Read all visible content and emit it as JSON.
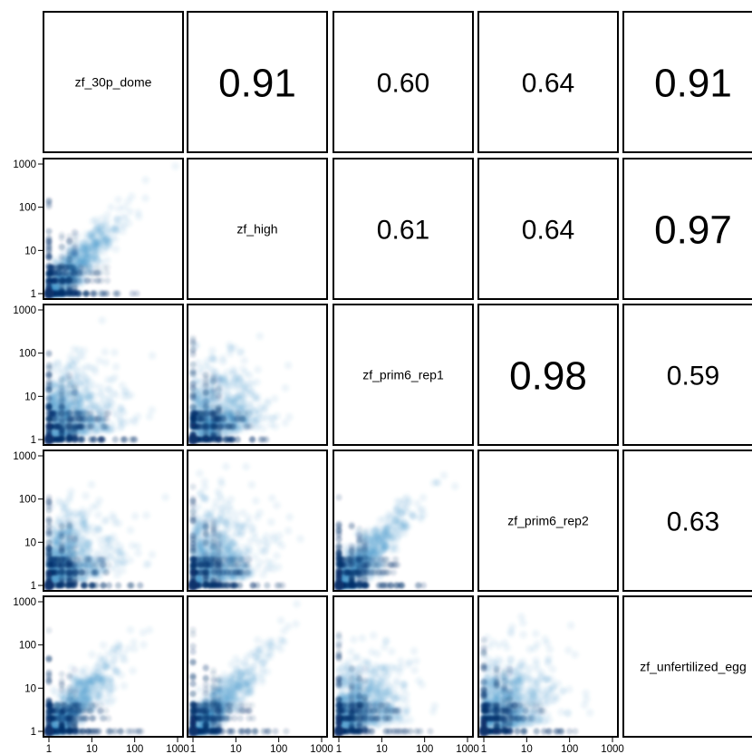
{
  "chart_data": {
    "type": "scatter",
    "plot_kind": "pairs-matrix",
    "variables": [
      "zf_30p_dome",
      "zf_high",
      "zf_prim6_rep1",
      "zf_prim6_rep2",
      "zf_unfertilized_egg"
    ],
    "upper_panels": "correlation coefficient text, font size scaled by value",
    "lower_panels": "smoothed density scatter (log-log)",
    "correlations": [
      {
        "row": "zf_30p_dome",
        "col": "zf_high",
        "value": "0.91"
      },
      {
        "row": "zf_30p_dome",
        "col": "zf_prim6_rep1",
        "value": "0.60"
      },
      {
        "row": "zf_30p_dome",
        "col": "zf_prim6_rep2",
        "value": "0.64"
      },
      {
        "row": "zf_30p_dome",
        "col": "zf_unfertilized_egg",
        "value": "0.91"
      },
      {
        "row": "zf_high",
        "col": "zf_prim6_rep1",
        "value": "0.61"
      },
      {
        "row": "zf_high",
        "col": "zf_prim6_rep2",
        "value": "0.64"
      },
      {
        "row": "zf_high",
        "col": "zf_unfertilized_egg",
        "value": "0.97"
      },
      {
        "row": "zf_prim6_rep1",
        "col": "zf_prim6_rep2",
        "value": "0.98"
      },
      {
        "row": "zf_prim6_rep1",
        "col": "zf_unfertilized_egg",
        "value": "0.59"
      },
      {
        "row": "zf_prim6_rep2",
        "col": "zf_unfertilized_egg",
        "value": "0.63"
      }
    ],
    "x_scale": "log10",
    "y_scale": "log10",
    "xlim": [
      1,
      1000
    ],
    "ylim": [
      1,
      1000
    ],
    "x_ticks": [
      "1",
      "10",
      "100",
      "1000"
    ],
    "y_ticks": [
      "1",
      "10",
      "100",
      "1000"
    ],
    "point_color": "#3c8cc8",
    "dense_color": "#08306b",
    "grid": false,
    "legend": "none"
  }
}
